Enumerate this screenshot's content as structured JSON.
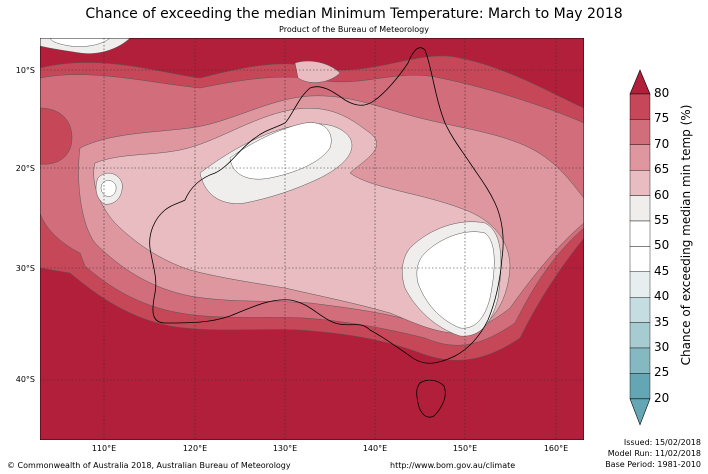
{
  "title": "Chance of exceeding the median Minimum Temperature: March to May 2018",
  "subtitle": "Product of the Bureau of Meteorology",
  "lat_labels": [
    "10°S",
    "20°S",
    "30°S",
    "40°S"
  ],
  "lon_labels": [
    "110°E",
    "120°E",
    "130°E",
    "140°E",
    "150°E",
    "160°E"
  ],
  "colorbar": {
    "label": "Chance of exceeding median min temp (%)",
    "ticks": [
      "80",
      "75",
      "70",
      "65",
      "60",
      "55",
      "50",
      "45",
      "40",
      "35",
      "30",
      "25",
      "20"
    ],
    "colors": [
      "#b21f3a",
      "#c64757",
      "#d26d7c",
      "#de969f",
      "#e8bcc0",
      "#efeeec",
      "#ffffff",
      "#ffffff",
      "#e6eef0",
      "#c5dde1",
      "#a6cbd1",
      "#86b8c2",
      "#64a6b4"
    ]
  },
  "footer": {
    "copyright": "© Commonwealth of Australia 2018, Australian Bureau of Meteorology",
    "url": "http://www.bom.gov.au/climate",
    "issued": "Issued: 15/02/2018",
    "model_run": "Model Run: 11/02/2018",
    "base_period": "Base Period: 1981-2010"
  }
}
